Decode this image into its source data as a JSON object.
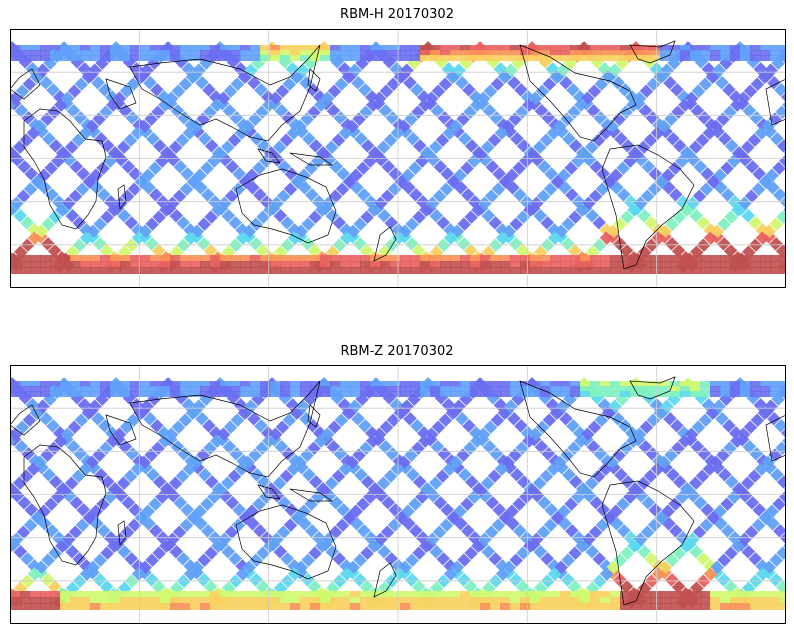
{
  "panels": [
    {
      "id": "rbm-h",
      "title": "RBM-H 20170302"
    },
    {
      "id": "rbm-z",
      "title": "RBM-Z 20170302"
    }
  ],
  "colors": {
    "background": "#ffffff",
    "track_low": "#6a6ef0",
    "track_mid": "#60a0f8",
    "coast": "#000000",
    "grid": "#cccccc",
    "colormap": [
      "#6a6ef0",
      "#60a0f8",
      "#5cd8f0",
      "#80f0c0",
      "#d0f870",
      "#f8d060",
      "#f89058",
      "#e86060",
      "#c05050"
    ]
  },
  "map": {
    "projection": "equirectangular",
    "gridlines": true,
    "coastlines": true
  }
}
